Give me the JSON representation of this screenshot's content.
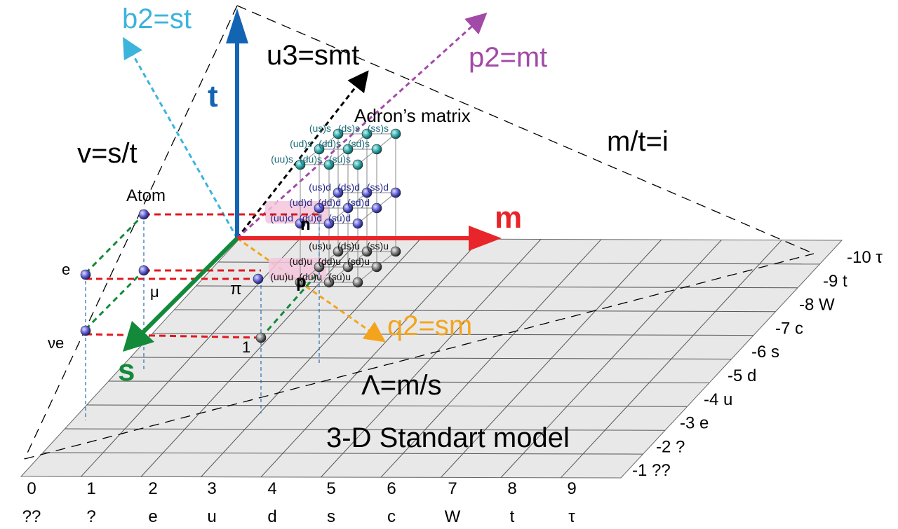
{
  "axes": {
    "t": {
      "label": "t",
      "color": "#1464b4"
    },
    "m": {
      "label": "m",
      "color": "#e8252a"
    },
    "s": {
      "label": "s",
      "color": "#138a3a"
    },
    "b2": {
      "label": "b2=st",
      "color": "#3cb4dc"
    },
    "u3": {
      "label": "u3=smt",
      "color": "#000000"
    },
    "p2": {
      "label": "p2=mt",
      "color": "#a24aa8"
    },
    "q2": {
      "label": "q2=sm",
      "color": "#f4a41c"
    }
  },
  "labels": {
    "velocity": "v=s/t",
    "inertia": "m/t=i",
    "lambda": "Λ=m/s",
    "matrix_title": "Adron’s matrix",
    "model_title": "3-D Standart model",
    "atom": "Atom",
    "electron": "e",
    "muon": "μ",
    "neutrino": "νe",
    "pion": "π",
    "neutron": "n",
    "proton": "p",
    "one": "1"
  },
  "bottom_axis": {
    "numbers": [
      "0",
      "1",
      "2",
      "3",
      "4",
      "5",
      "6",
      "7",
      "8",
      "9"
    ],
    "symbols": [
      "??",
      "?",
      "e",
      "u",
      "d",
      "s",
      "c",
      "W",
      "t",
      "τ"
    ]
  },
  "right_axis": [
    {
      "num": "-10",
      "sym": "τ"
    },
    {
      "num": "-9",
      "sym": "t"
    },
    {
      "num": "-8",
      "sym": "W"
    },
    {
      "num": "-7",
      "sym": "c"
    },
    {
      "num": "-6",
      "sym": "s"
    },
    {
      "num": "-5",
      "sym": "d"
    },
    {
      "num": "-4",
      "sym": "u"
    },
    {
      "num": "-3",
      "sym": "e"
    },
    {
      "num": "-2",
      "sym": "?"
    },
    {
      "num": "-1",
      "sym": "??"
    }
  ],
  "matrix": {
    "top_layer": [
      "(us)s",
      "(ds)s",
      "(ss)s",
      "(ud)s",
      "(dd)s",
      "(sd)s",
      "(uu)s",
      "(du)s",
      "(su)s"
    ],
    "mid_layer": [
      "(us)d",
      "(ds)d",
      "(ss)d",
      "(ud)d",
      "(dd)d",
      "(sd)d",
      "(uu)d",
      "(du)d",
      "(su)d"
    ],
    "low_layer": [
      "(us)u",
      "(ds)u",
      "(ss)u",
      "(ud)u",
      "(dd)u",
      "(sd)u",
      "(uu)u",
      "(du)u",
      "(su)u"
    ]
  },
  "colors": {
    "plane": "#e8e8e8",
    "grid": "#555555",
    "sphere_top": "#2fa6a6",
    "sphere_mid": "#5a5ad2",
    "sphere_low": "#777777",
    "highlight": "#f3c6dc"
  }
}
